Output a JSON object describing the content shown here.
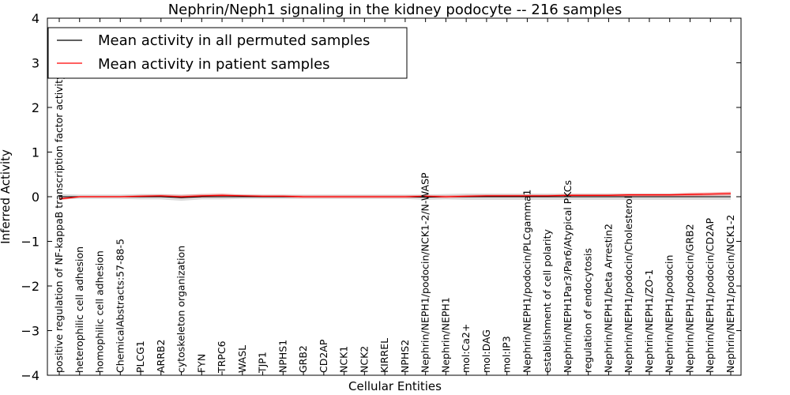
{
  "chart_data": {
    "type": "line",
    "title": "Nephrin/Neph1 signaling in the kidney podocyte -- 216 samples",
    "xlabel": "Cellular Entities",
    "ylabel": "Inferred Activity",
    "ylim": [
      -4,
      4
    ],
    "yticks": [
      4,
      3,
      2,
      1,
      0,
      -1,
      -2,
      -3,
      -4
    ],
    "ytick_labels": [
      "4",
      "3",
      "2",
      "1",
      "0",
      "−1",
      "−2",
      "−3",
      "−4"
    ],
    "legend_position": "top-left",
    "categories": [
      "positive regulation of NF-kappaB transcription factor activity",
      "heterophilic cell adhesion",
      "homophilic cell adhesion",
      "ChemicalAbstracts:57-88-5",
      "PLCG1",
      "ARRB2",
      "cytoskeleton organization",
      "FYN",
      "TRPC6",
      "WASL",
      "TJP1",
      "NPHS1",
      "GRB2",
      "CD2AP",
      "NCK1",
      "NCK2",
      "KIRREL",
      "NPHS2",
      "Nephrin/NEPH1/podocin/NCK1-2/N-WASP",
      "Nephrin/NEPH1",
      "mol:Ca2+",
      "mol:DAG",
      "mol:IP3",
      "Nephrin/NEPH1/podocin/PLCgamma1",
      "establishment of cell polarity",
      "Nephrin/NEPH1Par3/Par6/Atypical PKCs",
      "regulation of endocytosis",
      "Nephrin/NEPH1/beta Arrestin2",
      "Nephrin/NEPH1/podocin/Cholesterol",
      "Nephrin/NEPH1/ZO-1",
      "Nephrin/NEPH1/podocin",
      "Nephrin/NEPH1/podocin/GRB2",
      "Nephrin/NEPH1/podocin/CD2AP",
      "Nephrin/NEPH1/podocin/NCK1-2"
    ],
    "series": [
      {
        "name": "Mean activity in all permuted samples",
        "color": "#000000",
        "values": [
          0.0,
          0.0,
          0.0,
          0.0,
          0.0,
          0.0,
          -0.02,
          0.0,
          0.0,
          0.0,
          0.0,
          0.0,
          0.0,
          0.0,
          0.0,
          0.0,
          0.0,
          0.0,
          -0.01,
          0.0,
          0.0,
          0.0,
          0.0,
          0.0,
          0.0,
          0.0,
          0.0,
          0.0,
          0.0,
          0.0,
          0.0,
          0.0,
          0.0,
          0.0
        ],
        "band": [
          0.06,
          0.05,
          0.05,
          0.05,
          0.06,
          0.06,
          0.07,
          0.06,
          0.06,
          0.05,
          0.05,
          0.05,
          0.05,
          0.05,
          0.05,
          0.05,
          0.05,
          0.05,
          0.06,
          0.06,
          0.07,
          0.07,
          0.07,
          0.07,
          0.07,
          0.07,
          0.07,
          0.07,
          0.07,
          0.07,
          0.07,
          0.07,
          0.07,
          0.07
        ],
        "band_color": "#b0b0b0"
      },
      {
        "name": "Mean activity in patient samples",
        "color": "#ff0000",
        "values": [
          -0.05,
          0.0,
          0.0,
          0.0,
          0.01,
          0.02,
          0.0,
          0.02,
          0.03,
          0.02,
          0.01,
          0.01,
          0.0,
          0.0,
          0.0,
          0.0,
          0.0,
          0.0,
          0.01,
          0.0,
          0.01,
          0.02,
          0.02,
          0.02,
          0.02,
          0.03,
          0.03,
          0.03,
          0.04,
          0.04,
          0.04,
          0.05,
          0.06,
          0.07
        ],
        "band": [
          0.03,
          0.02,
          0.02,
          0.02,
          0.03,
          0.03,
          0.04,
          0.04,
          0.04,
          0.03,
          0.03,
          0.03,
          0.03,
          0.03,
          0.03,
          0.03,
          0.03,
          0.03,
          0.03,
          0.03,
          0.03,
          0.03,
          0.03,
          0.03,
          0.03,
          0.03,
          0.03,
          0.03,
          0.03,
          0.03,
          0.03,
          0.04,
          0.04,
          0.04
        ],
        "band_color": "#f08080"
      }
    ]
  }
}
